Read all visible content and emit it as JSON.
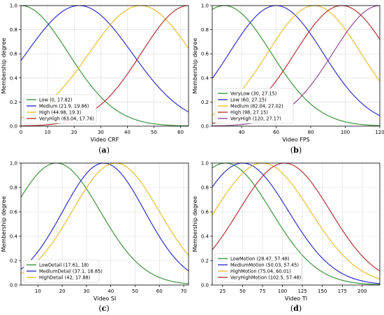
{
  "chart_data": [
    {
      "type": "line",
      "panel_label": "(a)",
      "xlabel": "Video CRF",
      "ylabel": "Membership degree",
      "xlim": [
        0,
        63
      ],
      "ylim": [
        0,
        1.0
      ],
      "xticks": [
        "0",
        "10",
        "20",
        "30",
        "40",
        "50",
        "60"
      ],
      "xtick_values": [
        0,
        10,
        20,
        30,
        40,
        50,
        60
      ],
      "yticks": [
        "0.0",
        "0.2",
        "0.4",
        "0.6",
        "0.8",
        "1.0"
      ],
      "grid": true,
      "legend_position": "lower-left",
      "series": [
        {
          "name": "Low (0, 17.82)",
          "mean": 0,
          "sigma": 17.82,
          "color": "#2e8b2e"
        },
        {
          "name": "Medium (21.9, 19.86)",
          "mean": 21.9,
          "sigma": 19.86,
          "color": "#1f1fc8"
        },
        {
          "name": "High (44.98, 19.3)",
          "mean": 44.98,
          "sigma": 19.3,
          "color": "#e6b820"
        },
        {
          "name": "VeryHigh (63.04, 17.76)",
          "mean": 63.04,
          "sigma": 17.76,
          "color": "#b22222"
        }
      ]
    },
    {
      "type": "line",
      "panel_label": "(b)",
      "xlabel": "Video FPS",
      "ylabel": "Membership degree",
      "xlim": [
        23,
        120
      ],
      "ylim": [
        0,
        1.0
      ],
      "xticks": [
        "40",
        "60",
        "80",
        "100",
        "120"
      ],
      "xtick_values": [
        40,
        60,
        80,
        100,
        120
      ],
      "yticks": [
        "0.0",
        "0.2",
        "0.4",
        "0.6",
        "0.8",
        "1.0"
      ],
      "grid": true,
      "legend_position": "lower-left",
      "series": [
        {
          "name": "VeryLow (30, 27.15)",
          "mean": 30,
          "sigma": 27.15,
          "color": "#2e8b2e"
        },
        {
          "name": "Low (60, 27.15)",
          "mean": 60,
          "sigma": 27.15,
          "color": "#1f1fc8"
        },
        {
          "name": "Medium (82.04, 27.02)",
          "mean": 82.04,
          "sigma": 27.02,
          "color": "#e6b820"
        },
        {
          "name": "High (98, 27.15)",
          "mean": 98,
          "sigma": 27.15,
          "color": "#b22222"
        },
        {
          "name": "VeryHigh (120, 27.17)",
          "mean": 120,
          "sigma": 27.17,
          "color": "#8b3a8b"
        }
      ]
    },
    {
      "type": "line",
      "panel_label": "(c)",
      "xlabel": "Video SI",
      "ylabel": "Membership degree",
      "xlim": [
        3,
        72
      ],
      "ylim": [
        0,
        1.0
      ],
      "xticks": [
        "10",
        "20",
        "30",
        "40",
        "50",
        "60",
        "70"
      ],
      "xtick_values": [
        10,
        20,
        30,
        40,
        50,
        60,
        70
      ],
      "yticks": [
        "0.0",
        "0.2",
        "0.4",
        "0.6",
        "0.8",
        "1.0"
      ],
      "grid": true,
      "legend_position": "lower-left",
      "series": [
        {
          "name": "LowDetail (17.61, 18)",
          "mean": 17.61,
          "sigma": 18,
          "color": "#2e8b2e"
        },
        {
          "name": "MediumDetail (37.1, 16.85)",
          "mean": 37.1,
          "sigma": 16.85,
          "color": "#1f1fc8"
        },
        {
          "name": "HighDetail (42, 17.88)",
          "mean": 42,
          "sigma": 17.88,
          "color": "#e6b820"
        }
      ]
    },
    {
      "type": "line",
      "panel_label": "(d)",
      "xlabel": "Video TI",
      "ylabel": "Membership degree",
      "xlim": [
        12,
        222
      ],
      "ylim": [
        0,
        1.0
      ],
      "xticks": [
        "25",
        "50",
        "75",
        "100",
        "125",
        "150",
        "175",
        "200"
      ],
      "xtick_values": [
        25,
        50,
        75,
        100,
        125,
        150,
        175,
        200
      ],
      "yticks": [
        "0.0",
        "0.2",
        "0.4",
        "0.6",
        "0.8",
        "1.0"
      ],
      "grid": true,
      "legend_position": "lower-left",
      "series": [
        {
          "name": "LowMotion (28.47, 57.48)",
          "mean": 28.47,
          "sigma": 57.48,
          "color": "#2e8b2e"
        },
        {
          "name": "MediumMotion (50.03, 57.45)",
          "mean": 50.03,
          "sigma": 57.45,
          "color": "#1f1fc8"
        },
        {
          "name": "HighMotion (75.04, 60.01)",
          "mean": 75.04,
          "sigma": 60.01,
          "color": "#e6b820"
        },
        {
          "name": "VeryHighMotion (102.5, 57.48)",
          "mean": 102.5,
          "sigma": 57.48,
          "color": "#b22222"
        }
      ]
    }
  ]
}
